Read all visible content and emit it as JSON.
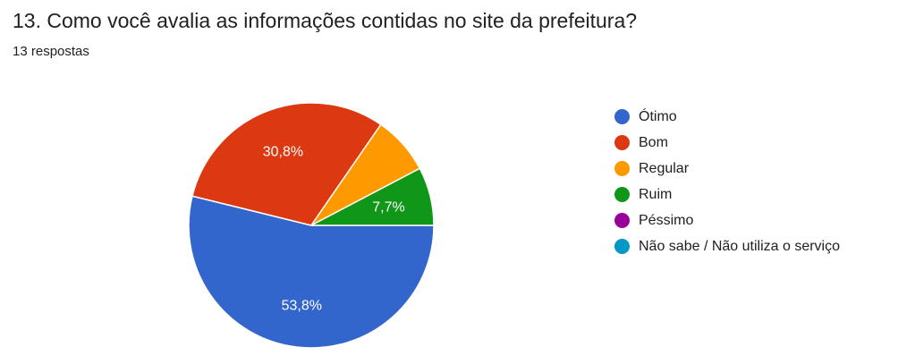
{
  "header": {
    "title": "13. Como você avalia as informações contidas no site da prefeitura?",
    "responses": "13 respostas"
  },
  "chart_data": {
    "type": "pie",
    "categories": [
      "Ótimo",
      "Bom",
      "Regular",
      "Ruim",
      "Péssimo",
      "Não sabe / Não utiliza o serviço"
    ],
    "values": [
      7,
      4,
      1,
      1,
      0,
      0
    ],
    "percent_labels": [
      "53,8%",
      "30,8%",
      "",
      "7,7%",
      "",
      ""
    ],
    "colors": [
      "#3366cc",
      "#dc3912",
      "#ff9900",
      "#109618",
      "#990099",
      "#0099c6"
    ],
    "legend": "right"
  }
}
